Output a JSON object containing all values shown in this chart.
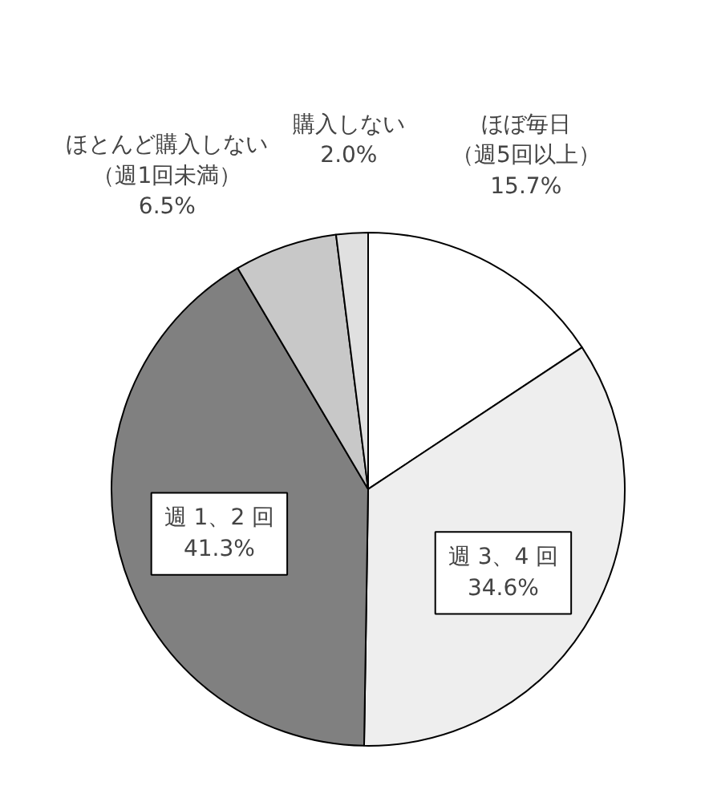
{
  "chart_data": {
    "type": "pie",
    "categories": [
      "ほぼ毎日（週5回以上）",
      "週 3、4 回",
      "週 1、2 回",
      "ほとんど購入しない（週1回未満）",
      "購入しない"
    ],
    "values": [
      15.7,
      34.6,
      41.3,
      6.5,
      2.0
    ],
    "value_labels": [
      "15.7%",
      "34.6%",
      "41.3%",
      "6.5%",
      "2.0%"
    ],
    "colors": [
      "#ffffff",
      "#eeeeee",
      "#808080",
      "#c8c8c8",
      "#e0e0e0"
    ]
  }
}
